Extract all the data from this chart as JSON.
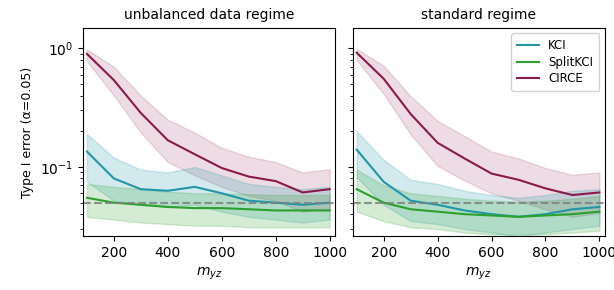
{
  "x": [
    100,
    200,
    300,
    400,
    500,
    600,
    700,
    800,
    900,
    1000
  ],
  "panels": [
    {
      "title": "unbalanced data regime",
      "KCI_mean": [
        0.135,
        0.08,
        0.065,
        0.063,
        0.068,
        0.06,
        0.052,
        0.05,
        0.048,
        0.05
      ],
      "KCI_lo": [
        0.075,
        0.052,
        0.048,
        0.046,
        0.048,
        0.042,
        0.038,
        0.036,
        0.034,
        0.036
      ],
      "KCI_hi": [
        0.19,
        0.12,
        0.095,
        0.09,
        0.1,
        0.085,
        0.072,
        0.068,
        0.065,
        0.068
      ],
      "SplitKCI_mean": [
        0.055,
        0.05,
        0.048,
        0.046,
        0.045,
        0.045,
        0.044,
        0.043,
        0.043,
        0.043
      ],
      "SplitKCI_lo": [
        0.038,
        0.036,
        0.034,
        0.033,
        0.032,
        0.032,
        0.031,
        0.031,
        0.031,
        0.031
      ],
      "SplitKCI_hi": [
        0.072,
        0.068,
        0.065,
        0.062,
        0.06,
        0.06,
        0.059,
        0.058,
        0.058,
        0.058
      ],
      "CIRCE_mean": [
        0.9,
        0.54,
        0.285,
        0.168,
        0.128,
        0.098,
        0.083,
        0.076,
        0.061,
        0.065
      ],
      "CIRCE_lo": [
        0.78,
        0.4,
        0.195,
        0.11,
        0.085,
        0.068,
        0.057,
        0.052,
        0.042,
        0.045
      ],
      "CIRCE_hi": [
        0.98,
        0.7,
        0.4,
        0.25,
        0.195,
        0.145,
        0.122,
        0.11,
        0.09,
        0.096
      ]
    },
    {
      "title": "standard regime",
      "KCI_mean": [
        0.14,
        0.075,
        0.052,
        0.048,
        0.043,
        0.04,
        0.038,
        0.04,
        0.044,
        0.046
      ],
      "KCI_lo": [
        0.082,
        0.048,
        0.035,
        0.033,
        0.03,
        0.028,
        0.026,
        0.028,
        0.03,
        0.032
      ],
      "KCI_hi": [
        0.2,
        0.115,
        0.078,
        0.072,
        0.063,
        0.058,
        0.055,
        0.058,
        0.063,
        0.065
      ],
      "SplitKCI_mean": [
        0.065,
        0.05,
        0.044,
        0.042,
        0.04,
        0.039,
        0.038,
        0.039,
        0.04,
        0.042
      ],
      "SplitKCI_lo": [
        0.042,
        0.035,
        0.031,
        0.03,
        0.028,
        0.027,
        0.027,
        0.027,
        0.028,
        0.029
      ],
      "SplitKCI_hi": [
        0.095,
        0.07,
        0.06,
        0.057,
        0.054,
        0.052,
        0.051,
        0.052,
        0.054,
        0.057
      ],
      "CIRCE_mean": [
        0.92,
        0.555,
        0.28,
        0.16,
        0.118,
        0.088,
        0.078,
        0.066,
        0.058,
        0.061
      ],
      "CIRCE_lo": [
        0.8,
        0.412,
        0.188,
        0.102,
        0.077,
        0.06,
        0.052,
        0.044,
        0.038,
        0.041
      ],
      "CIRCE_hi": [
        0.99,
        0.715,
        0.395,
        0.245,
        0.182,
        0.135,
        0.118,
        0.098,
        0.086,
        0.09
      ]
    }
  ],
  "alpha_line": 0.05,
  "colors": {
    "KCI": "#2196A8",
    "SplitKCI": "#2CA02C",
    "CIRCE": "#8B1A4A"
  },
  "xlabel": "$m_{yz}$",
  "ylabel": "Type I error (α=0.05)",
  "xticks": [
    200,
    400,
    600,
    800,
    1000
  ],
  "ylim": [
    0.026,
    1.5
  ]
}
